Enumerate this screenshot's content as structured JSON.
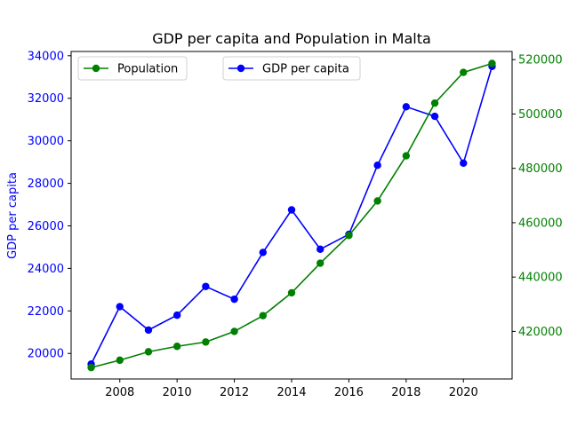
{
  "chart_data": {
    "type": "line",
    "title": "GDP per capita and Population in Malta",
    "xlabel": "",
    "ylabel": "GDP per capita",
    "y2label": "",
    "x": [
      2007,
      2008,
      2009,
      2010,
      2011,
      2012,
      2013,
      2014,
      2015,
      2016,
      2017,
      2018,
      2019,
      2020,
      2021
    ],
    "xlim": [
      2006.3,
      2021.7
    ],
    "x_ticks": [
      "2008",
      "2010",
      "2012",
      "2014",
      "2016",
      "2018",
      "2020"
    ],
    "ylim": [
      18800,
      34200
    ],
    "y_ticks": [
      "20000",
      "22000",
      "24000",
      "26000",
      "28000",
      "30000",
      "32000",
      "34000"
    ],
    "y2lim": [
      402500,
      523000
    ],
    "y2_ticks": [
      "420000",
      "440000",
      "460000",
      "480000",
      "500000",
      "520000"
    ],
    "series": [
      {
        "name": "GDP per capita",
        "axis": "left",
        "color": "#0000ff",
        "values": [
          19500,
          22200,
          21100,
          21800,
          23150,
          22550,
          24750,
          26750,
          24900,
          25600,
          28850,
          31600,
          31150,
          28950,
          33500
        ]
      },
      {
        "name": "Population",
        "axis": "right",
        "color": "#008000",
        "values": [
          406700,
          409400,
          412500,
          414500,
          416100,
          420000,
          425800,
          434200,
          445100,
          455300,
          468000,
          484600,
          504000,
          515300,
          518600
        ]
      }
    ],
    "legend": [
      {
        "label": "Population",
        "color": "#008000",
        "position": "top-left"
      },
      {
        "label": "GDP per capita",
        "color": "#0000ff",
        "position": "top-center"
      }
    ],
    "grid": false
  }
}
